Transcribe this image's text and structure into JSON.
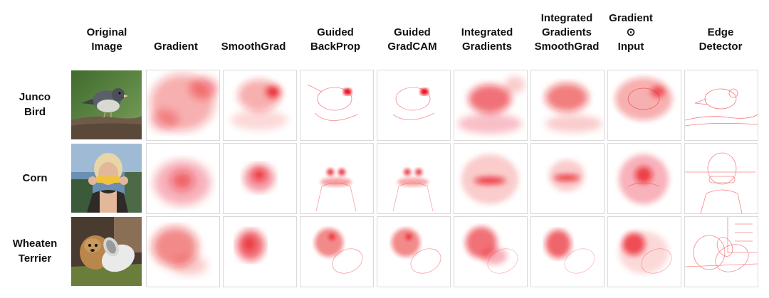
{
  "columns": [
    {
      "key": "original",
      "label": "Original\nImage"
    },
    {
      "key": "gradient",
      "label": "Gradient"
    },
    {
      "key": "smoothgrad",
      "label": "SmoothGrad"
    },
    {
      "key": "guided_backprop",
      "label": "Guided\nBackProp"
    },
    {
      "key": "guided_gradcam",
      "label": "Guided\nGradCAM"
    },
    {
      "key": "integrated_gradients",
      "label": "Integrated\nGradients"
    },
    {
      "key": "ig_smoothgrad",
      "label": "Integrated\nGradients\nSmoothGrad"
    },
    {
      "key": "gradient_input",
      "label": "Gradient\n⊙\nInput"
    },
    {
      "key": "edge_detector",
      "label": "Edge\nDetector"
    }
  ],
  "rows": [
    {
      "key": "junco",
      "label": "Junco\nBird"
    },
    {
      "key": "corn",
      "label": "Corn"
    },
    {
      "key": "terrier",
      "label": "Wheaten\nTerrier"
    }
  ],
  "colors": {
    "saliency": "#e8101a",
    "background": "#ffffff",
    "cell_border": "#d9d9d9"
  }
}
